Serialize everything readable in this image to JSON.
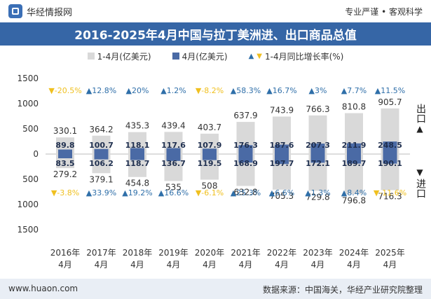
{
  "header": {
    "brand": "华经情报网",
    "top_right": "专业严谨 • 客观科学",
    "title": "2016-2025年4月中国与拉丁美洲进、出口商品总值"
  },
  "legend": {
    "ytd": "1-4月(亿美元)",
    "month": "4月(亿美元)",
    "yoy": "1-4月同比增长率(%)"
  },
  "side_labels": {
    "export": "出口",
    "import": "进口"
  },
  "footer": {
    "left": "www.huaon.com",
    "right": "数据来源：中国海关，华经产业研究院整理"
  },
  "colors": {
    "ytd_bar": "#d9d9d9",
    "month_bar": "#4a6aa5",
    "up": "#2f6fa9",
    "down": "#f0c020",
    "title_bg": "#3666a6"
  },
  "chart_data": {
    "type": "bar",
    "categories": [
      "2016年\n4月",
      "2017年\n4月",
      "2018年\n4月",
      "2019年\n4月",
      "2020年\n4月",
      "2021年\n4月",
      "2022年\n4月",
      "2023年\n4月",
      "2024年\n4月",
      "2025年\n4月"
    ],
    "yticks": [
      1500,
      1000,
      500,
      0,
      500,
      1000,
      1500
    ],
    "ylim": [
      -1500,
      1500
    ],
    "series": [
      {
        "name": "出口 1-4月(亿美元)",
        "values": [
          330.1,
          364.2,
          435.3,
          439.4,
          403.7,
          637.9,
          743.9,
          766.3,
          810.8,
          905.7
        ]
      },
      {
        "name": "出口 4月(亿美元)",
        "values": [
          89.8,
          100.7,
          118.1,
          117.6,
          107.9,
          176.3,
          187.6,
          207.3,
          211.9,
          248.5
        ]
      },
      {
        "name": "出口 1-4月同比增长率(%)",
        "values": [
          "-20.5%",
          "12.8%",
          "20%",
          "1.2%",
          "-8.2%",
          "58.3%",
          "16.7%",
          "3%",
          "7.7%",
          "11.5%"
        ],
        "direction": [
          "down",
          "up",
          "up",
          "up",
          "down",
          "up",
          "up",
          "up",
          "up",
          "up"
        ]
      },
      {
        "name": "进口 1-4月(亿美元)",
        "values": [
          279.2,
          379.1,
          454.8,
          535,
          508,
          632.8,
          705.3,
          729.8,
          796.8,
          716.3
        ]
      },
      {
        "name": "进口 4月(亿美元)",
        "values": [
          83.5,
          106.2,
          118.7,
          136.7,
          119.5,
          168.9,
          197.7,
          172.1,
          189.7,
          190.1
        ]
      },
      {
        "name": "进口 1-4月同比增长率(%)",
        "values": [
          "-3.8%",
          "33.9%",
          "19.2%",
          "16.6%",
          "-6.1%",
          "25.3%",
          "6.6%",
          "1.3%",
          "8.4%",
          "-11.6%"
        ],
        "direction": [
          "down",
          "up",
          "up",
          "up",
          "down",
          "up",
          "up",
          "up",
          "up",
          "down"
        ]
      }
    ]
  }
}
